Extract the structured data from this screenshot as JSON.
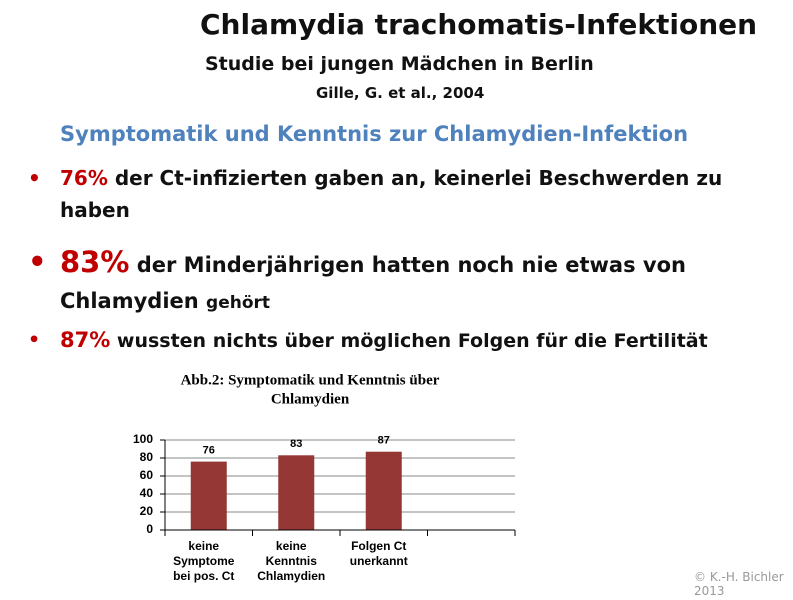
{
  "slide": {
    "title": "Chlamydia trachomatis-Infektionen",
    "subtitle": "Studie bei jungen Mädchen in Berlin",
    "source": "Gille, G. et al., 2004",
    "heading": "Symptomatik und Kenntnis zur Chlamydien-Infektion",
    "bullets": [
      {
        "highlight": "76%",
        "text": "der Ct-infizierten gaben an, keinerlei Beschwerden zu haben"
      },
      {
        "highlight": "83%",
        "text": "der Minderjährigen hatten noch nie etwas von Chlamydien",
        "small": "gehört"
      },
      {
        "highlight": "87%",
        "text": "wussten nichts über möglichen Folgen für die Fertilität"
      }
    ],
    "copyright": [
      "© K.-H. Bichler",
      "2013"
    ]
  },
  "chart_data": {
    "type": "bar",
    "title": [
      "Abb.2: Symptomatik und Kenntnis über",
      "Chlamydien"
    ],
    "categories": [
      [
        "keine",
        "Symptome",
        "bei pos. Ct"
      ],
      [
        "keine",
        "Kenntnis",
        "Chlamydien"
      ],
      [
        "Folgen Ct",
        "unerkannt"
      ],
      null
    ],
    "values": [
      76,
      83,
      87,
      null
    ],
    "color": "#953735",
    "ylim": [
      0,
      100
    ],
    "yticks": [
      0,
      20,
      40,
      60,
      80,
      100
    ],
    "grid": true
  }
}
